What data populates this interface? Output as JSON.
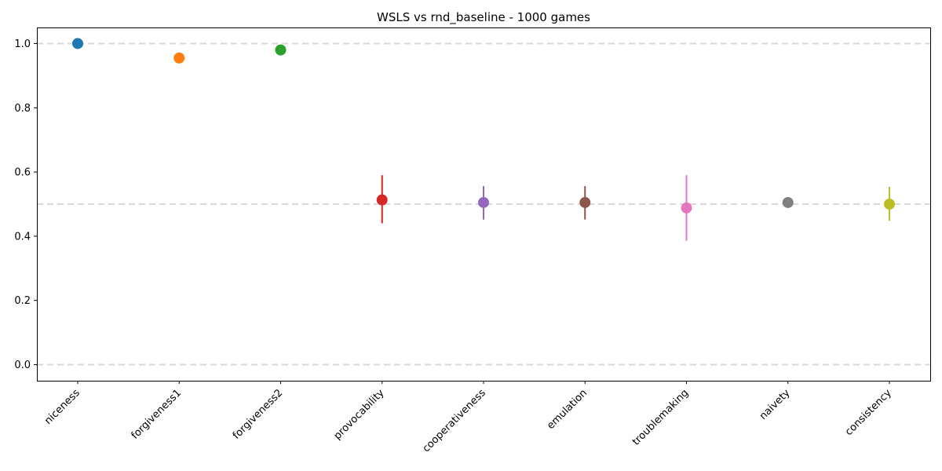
{
  "chart_data": {
    "type": "scatter",
    "title": "WSLS vs rnd_baseline - 1000 games",
    "xlabel": "",
    "ylabel": "",
    "ylim": [
      -0.05,
      1.05
    ],
    "yticks": [
      "0.0",
      "0.2",
      "0.4",
      "0.6",
      "0.8",
      "1.0"
    ],
    "reference_lines": [
      0.0,
      0.5,
      1.0
    ],
    "grid": false,
    "points": [
      {
        "category": "niceness",
        "value": 1.0,
        "err_low": 1.0,
        "err_high": 1.0,
        "color": "#1f77b4"
      },
      {
        "category": "forgiveness1",
        "value": 0.955,
        "err_low": 0.955,
        "err_high": 0.955,
        "color": "#ff7f0e"
      },
      {
        "category": "forgiveness2",
        "value": 0.98,
        "err_low": 0.98,
        "err_high": 0.98,
        "color": "#2ca02c"
      },
      {
        "category": "provocability",
        "value": 0.513,
        "err_low": 0.44,
        "err_high": 0.59,
        "color": "#d62728"
      },
      {
        "category": "cooperativeness",
        "value": 0.505,
        "err_low": 0.452,
        "err_high": 0.556,
        "color": "#9467bd"
      },
      {
        "category": "emulation",
        "value": 0.505,
        "err_low": 0.452,
        "err_high": 0.556,
        "color": "#8c564b"
      },
      {
        "category": "troublemaking",
        "value": 0.488,
        "err_low": 0.386,
        "err_high": 0.59,
        "color": "#e377c2"
      },
      {
        "category": "naivety",
        "value": 0.505,
        "err_low": 0.505,
        "err_high": 0.505,
        "color": "#7f7f7f"
      },
      {
        "category": "consistency",
        "value": 0.5,
        "err_low": 0.448,
        "err_high": 0.554,
        "color": "#bcbd22"
      }
    ]
  }
}
